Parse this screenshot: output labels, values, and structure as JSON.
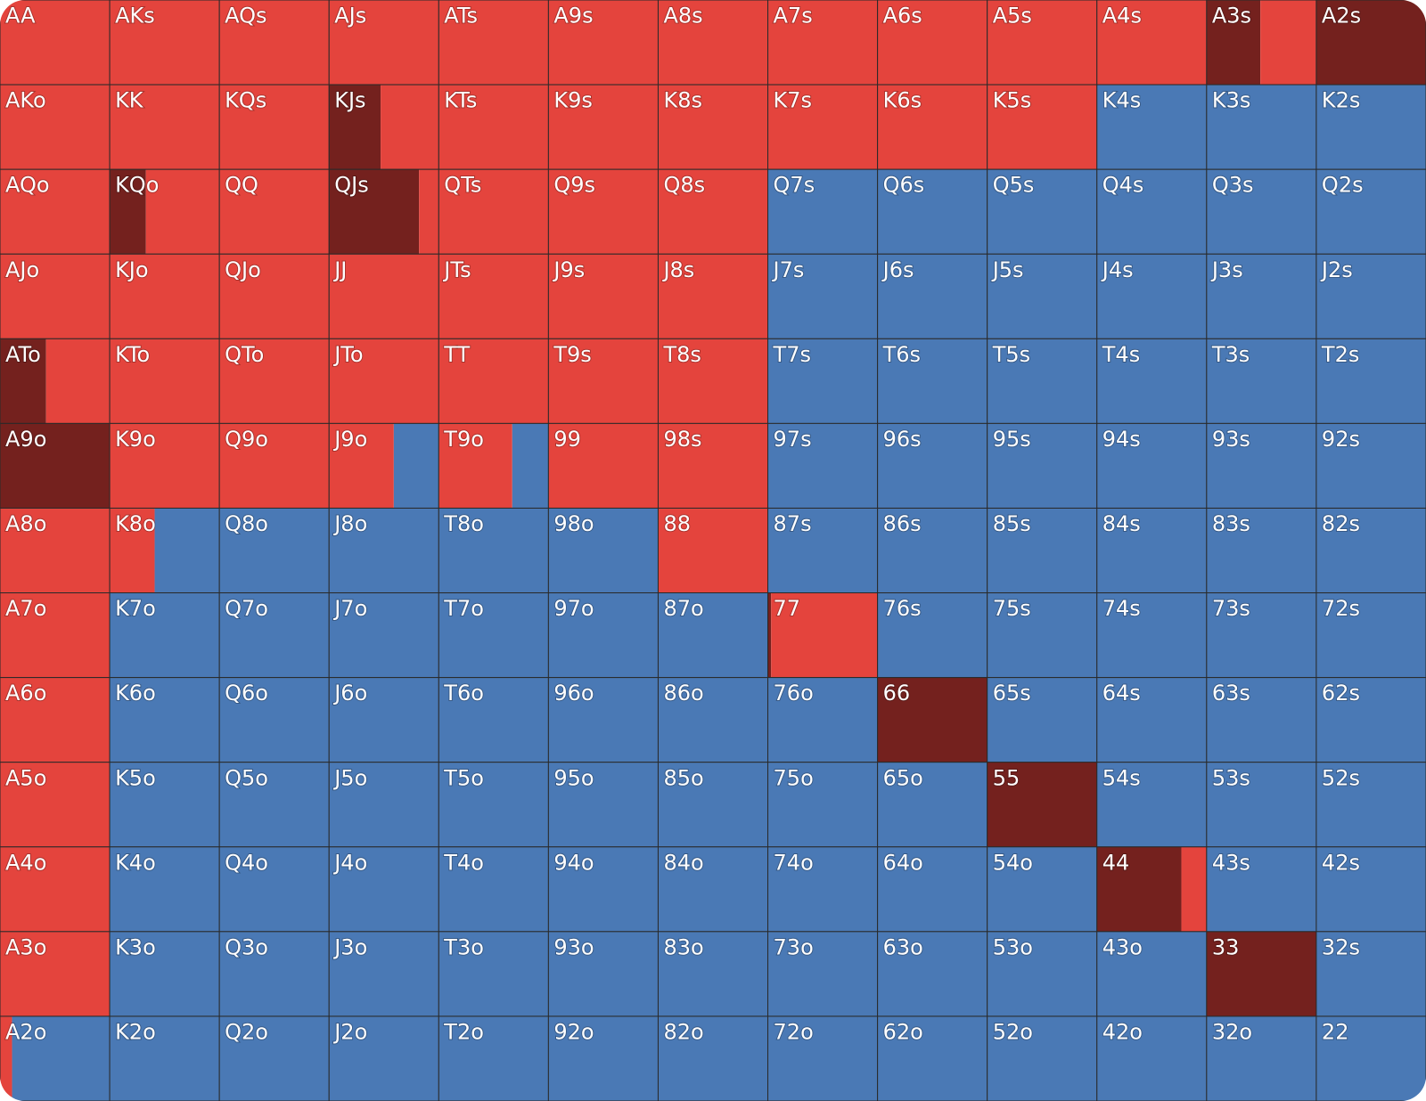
{
  "colors": [
    "#74211e",
    "#e4443d",
    "#4a79b5"
  ],
  "grid": {
    "rows": [
      [
        [
          "AA",
          0,
          100,
          0
        ],
        [
          "AKs",
          0,
          100,
          0
        ],
        [
          "AQs",
          0,
          100,
          0
        ],
        [
          "AJs",
          0,
          100,
          0
        ],
        [
          "ATs",
          0,
          100,
          0
        ],
        [
          "A9s",
          0,
          100,
          0
        ],
        [
          "A8s",
          0,
          100,
          0
        ],
        [
          "A7s",
          0,
          100,
          0
        ],
        [
          "A6s",
          0,
          100,
          0
        ],
        [
          "A5s",
          0,
          100,
          0
        ],
        [
          "A4s",
          0,
          100,
          0
        ],
        [
          "A3s",
          49,
          51,
          0
        ],
        [
          "A2s",
          100,
          0,
          0
        ]
      ],
      [
        [
          "AKo",
          0,
          100,
          0
        ],
        [
          "KK",
          0,
          100,
          0
        ],
        [
          "KQs",
          0,
          100,
          0
        ],
        [
          "KJs",
          47,
          53,
          0
        ],
        [
          "KTs",
          0,
          100,
          0
        ],
        [
          "K9s",
          0,
          100,
          0
        ],
        [
          "K8s",
          0,
          100,
          0
        ],
        [
          "K7s",
          0,
          100,
          0
        ],
        [
          "K6s",
          0,
          100,
          0
        ],
        [
          "K5s",
          0,
          100,
          0
        ],
        [
          "K4s",
          0,
          0,
          100
        ],
        [
          "K3s",
          0,
          0,
          100
        ],
        [
          "K2s",
          0,
          0,
          100
        ]
      ],
      [
        [
          "AQo",
          0,
          100,
          0
        ],
        [
          "KQo",
          33,
          67,
          0
        ],
        [
          "QQ",
          0,
          100,
          0
        ],
        [
          "QJs",
          82,
          18,
          0
        ],
        [
          "QTs",
          0,
          100,
          0
        ],
        [
          "Q9s",
          0,
          100,
          0
        ],
        [
          "Q8s",
          0,
          100,
          0
        ],
        [
          "Q7s",
          0,
          0,
          100
        ],
        [
          "Q6s",
          0,
          0,
          100
        ],
        [
          "Q5s",
          0,
          0,
          100
        ],
        [
          "Q4s",
          0,
          0,
          100
        ],
        [
          "Q3s",
          0,
          0,
          100
        ],
        [
          "Q2s",
          0,
          0,
          100
        ]
      ],
      [
        [
          "AJo",
          0,
          100,
          0
        ],
        [
          "KJo",
          0,
          100,
          0
        ],
        [
          "QJo",
          0,
          100,
          0
        ],
        [
          "JJ",
          0,
          100,
          0
        ],
        [
          "JTs",
          0,
          100,
          0
        ],
        [
          "J9s",
          0,
          100,
          0
        ],
        [
          "J8s",
          0,
          100,
          0
        ],
        [
          "J7s",
          0,
          0,
          100
        ],
        [
          "J6s",
          0,
          0,
          100
        ],
        [
          "J5s",
          0,
          0,
          100
        ],
        [
          "J4s",
          0,
          0,
          100
        ],
        [
          "J3s",
          0,
          0,
          100
        ],
        [
          "J2s",
          0,
          0,
          100
        ]
      ],
      [
        [
          "ATo",
          42,
          58,
          0
        ],
        [
          "KTo",
          0,
          100,
          0
        ],
        [
          "QTo",
          0,
          100,
          0
        ],
        [
          "JTo",
          0,
          100,
          0
        ],
        [
          "TT",
          0,
          100,
          0
        ],
        [
          "T9s",
          0,
          100,
          0
        ],
        [
          "T8s",
          0,
          100,
          0
        ],
        [
          "T7s",
          0,
          0,
          100
        ],
        [
          "T6s",
          0,
          0,
          100
        ],
        [
          "T5s",
          0,
          0,
          100
        ],
        [
          "T4s",
          0,
          0,
          100
        ],
        [
          "T3s",
          0,
          0,
          100
        ],
        [
          "T2s",
          0,
          0,
          100
        ]
      ],
      [
        [
          "A9o",
          100,
          0,
          0
        ],
        [
          "K9o",
          0,
          100,
          0
        ],
        [
          "Q9o",
          0,
          100,
          0
        ],
        [
          "J9o",
          0,
          59,
          41
        ],
        [
          "T9o",
          0,
          67,
          33
        ],
        [
          "99",
          0,
          100,
          0
        ],
        [
          "98s",
          0,
          100,
          0
        ],
        [
          "97s",
          0,
          0,
          100
        ],
        [
          "96s",
          0,
          0,
          100
        ],
        [
          "95s",
          0,
          0,
          100
        ],
        [
          "94s",
          0,
          0,
          100
        ],
        [
          "93s",
          0,
          0,
          100
        ],
        [
          "92s",
          0,
          0,
          100
        ]
      ],
      [
        [
          "A8o",
          0,
          100,
          0
        ],
        [
          "K8o",
          0,
          41,
          59
        ],
        [
          "Q8o",
          0,
          0,
          100
        ],
        [
          "J8o",
          0,
          0,
          100
        ],
        [
          "T8o",
          0,
          0,
          100
        ],
        [
          "98o",
          0,
          0,
          100
        ],
        [
          "88",
          0,
          100,
          0
        ],
        [
          "87s",
          0,
          0,
          100
        ],
        [
          "86s",
          0,
          0,
          100
        ],
        [
          "85s",
          0,
          0,
          100
        ],
        [
          "84s",
          0,
          0,
          100
        ],
        [
          "83s",
          0,
          0,
          100
        ],
        [
          "82s",
          0,
          0,
          100
        ]
      ],
      [
        [
          "A7o",
          0,
          100,
          0
        ],
        [
          "K7o",
          0,
          0,
          100
        ],
        [
          "Q7o",
          0,
          0,
          100
        ],
        [
          "J7o",
          0,
          0,
          100
        ],
        [
          "T7o",
          0,
          0,
          100
        ],
        [
          "97o",
          0,
          0,
          100
        ],
        [
          "87o",
          0,
          0,
          100
        ],
        [
          "77",
          3,
          97,
          0
        ],
        [
          "76s",
          0,
          0,
          100
        ],
        [
          "75s",
          0,
          0,
          100
        ],
        [
          "74s",
          0,
          0,
          100
        ],
        [
          "73s",
          0,
          0,
          100
        ],
        [
          "72s",
          0,
          0,
          100
        ]
      ],
      [
        [
          "A6o",
          0,
          100,
          0
        ],
        [
          "K6o",
          0,
          0,
          100
        ],
        [
          "Q6o",
          0,
          0,
          100
        ],
        [
          "J6o",
          0,
          0,
          100
        ],
        [
          "T6o",
          0,
          0,
          100
        ],
        [
          "96o",
          0,
          0,
          100
        ],
        [
          "86o",
          0,
          0,
          100
        ],
        [
          "76o",
          0,
          0,
          100
        ],
        [
          "66",
          100,
          0,
          0
        ],
        [
          "65s",
          0,
          0,
          100
        ],
        [
          "64s",
          0,
          0,
          100
        ],
        [
          "63s",
          0,
          0,
          100
        ],
        [
          "62s",
          0,
          0,
          100
        ]
      ],
      [
        [
          "A5o",
          0,
          100,
          0
        ],
        [
          "K5o",
          0,
          0,
          100
        ],
        [
          "Q5o",
          0,
          0,
          100
        ],
        [
          "J5o",
          0,
          0,
          100
        ],
        [
          "T5o",
          0,
          0,
          100
        ],
        [
          "95o",
          0,
          0,
          100
        ],
        [
          "85o",
          0,
          0,
          100
        ],
        [
          "75o",
          0,
          0,
          100
        ],
        [
          "65o",
          0,
          0,
          100
        ],
        [
          "55",
          100,
          0,
          0
        ],
        [
          "54s",
          0,
          0,
          100
        ],
        [
          "53s",
          0,
          0,
          100
        ],
        [
          "52s",
          0,
          0,
          100
        ]
      ],
      [
        [
          "A4o",
          0,
          100,
          0
        ],
        [
          "K4o",
          0,
          0,
          100
        ],
        [
          "Q4o",
          0,
          0,
          100
        ],
        [
          "J4o",
          0,
          0,
          100
        ],
        [
          "T4o",
          0,
          0,
          100
        ],
        [
          "94o",
          0,
          0,
          100
        ],
        [
          "84o",
          0,
          0,
          100
        ],
        [
          "74o",
          0,
          0,
          100
        ],
        [
          "64o",
          0,
          0,
          100
        ],
        [
          "54o",
          0,
          0,
          100
        ],
        [
          "44",
          77,
          23,
          0
        ],
        [
          "43s",
          0,
          0,
          100
        ],
        [
          "42s",
          0,
          0,
          100
        ]
      ],
      [
        [
          "A3o",
          0,
          100,
          0
        ],
        [
          "K3o",
          0,
          0,
          100
        ],
        [
          "Q3o",
          0,
          0,
          100
        ],
        [
          "J3o",
          0,
          0,
          100
        ],
        [
          "T3o",
          0,
          0,
          100
        ],
        [
          "93o",
          0,
          0,
          100
        ],
        [
          "83o",
          0,
          0,
          100
        ],
        [
          "73o",
          0,
          0,
          100
        ],
        [
          "63o",
          0,
          0,
          100
        ],
        [
          "53o",
          0,
          0,
          100
        ],
        [
          "43o",
          0,
          0,
          100
        ],
        [
          "33",
          100,
          0,
          0
        ],
        [
          "32s",
          0,
          0,
          100
        ]
      ],
      [
        [
          "A2o",
          0,
          11,
          89
        ],
        [
          "K2o",
          0,
          0,
          100
        ],
        [
          "Q2o",
          0,
          0,
          100
        ],
        [
          "J2o",
          0,
          0,
          100
        ],
        [
          "T2o",
          0,
          0,
          100
        ],
        [
          "92o",
          0,
          0,
          100
        ],
        [
          "82o",
          0,
          0,
          100
        ],
        [
          "72o",
          0,
          0,
          100
        ],
        [
          "62o",
          0,
          0,
          100
        ],
        [
          "52o",
          0,
          0,
          100
        ],
        [
          "42o",
          0,
          0,
          100
        ],
        [
          "32o",
          0,
          0,
          100
        ],
        [
          "22",
          0,
          0,
          100
        ]
      ]
    ]
  }
}
